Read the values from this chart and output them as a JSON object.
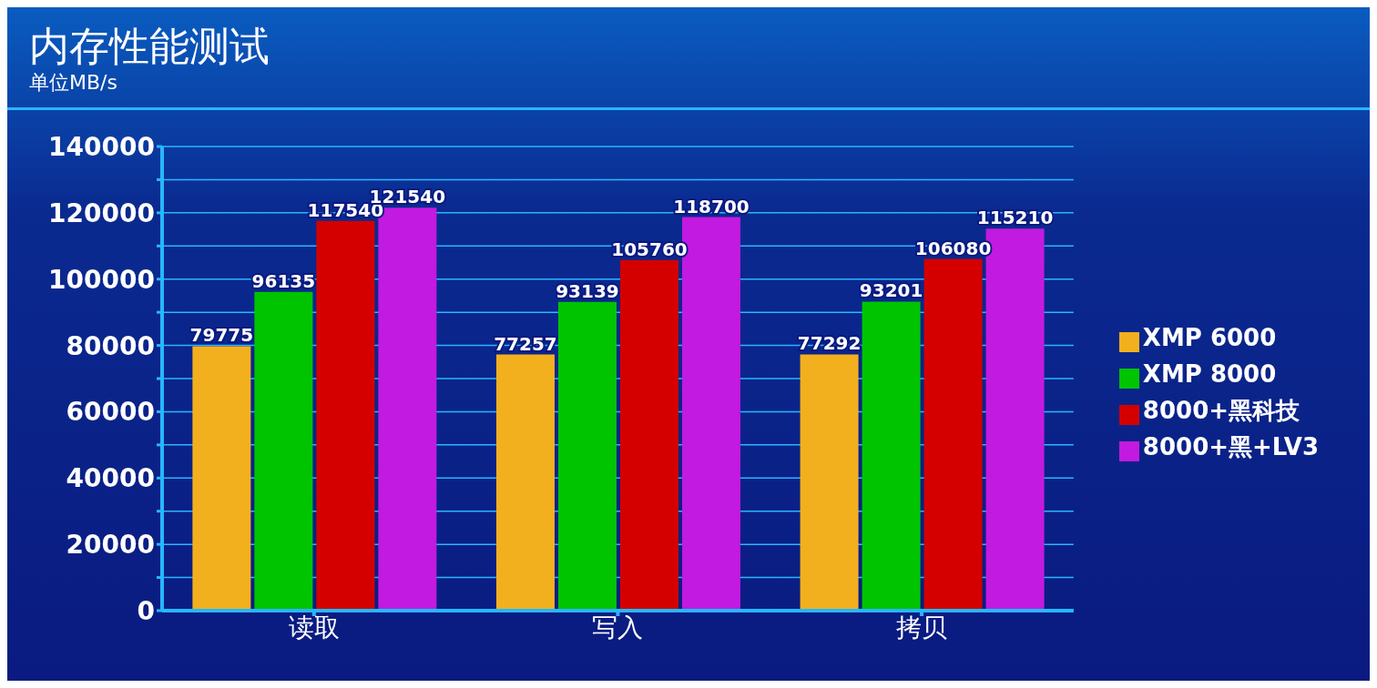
{
  "chart_data": {
    "type": "bar",
    "title": "内存性能测试",
    "subtitle": "单位MB/s",
    "categories": [
      "读取",
      "写入",
      "拷贝"
    ],
    "series": [
      {
        "name": "XMP 6000",
        "color": "#f2b01e",
        "values": [
          79775,
          77257,
          77292
        ]
      },
      {
        "name": "XMP 8000",
        "color": "#00c400",
        "values": [
          96135,
          93139,
          93201
        ]
      },
      {
        "name": "8000+黑科技",
        "color": "#d40000",
        "values": [
          117540,
          105760,
          106080
        ]
      },
      {
        "name": "8000+黑+LV3",
        "color": "#c21ae0",
        "values": [
          121540,
          118700,
          115210
        ]
      }
    ],
    "ylim": [
      0,
      140000
    ],
    "yticks": [
      0,
      {
        "value": 10000,
        "label": null
      },
      20000,
      {
        "value": 30000,
        "label": null
      },
      40000,
      {
        "value": 50000,
        "label": null
      },
      60000,
      {
        "value": 70000,
        "label": null
      },
      80000,
      {
        "value": 90000,
        "label": null
      },
      100000,
      {
        "value": 110000,
        "label": null
      },
      120000,
      {
        "value": 130000,
        "label": null
      },
      140000
    ],
    "grid": "y",
    "legend": "right",
    "data_labels": true
  }
}
